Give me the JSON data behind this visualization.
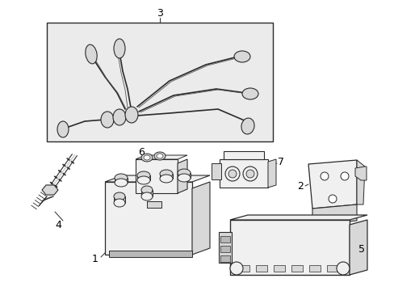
{
  "background_color": "#ffffff",
  "line_color": "#2a2a2a",
  "fill_light": "#f0f0f0",
  "fill_mid": "#d8d8d8",
  "fill_dark": "#b8b8b8",
  "fill_box": "#ebebeb",
  "fig_w": 4.89,
  "fig_h": 3.6,
  "dpi": 100
}
